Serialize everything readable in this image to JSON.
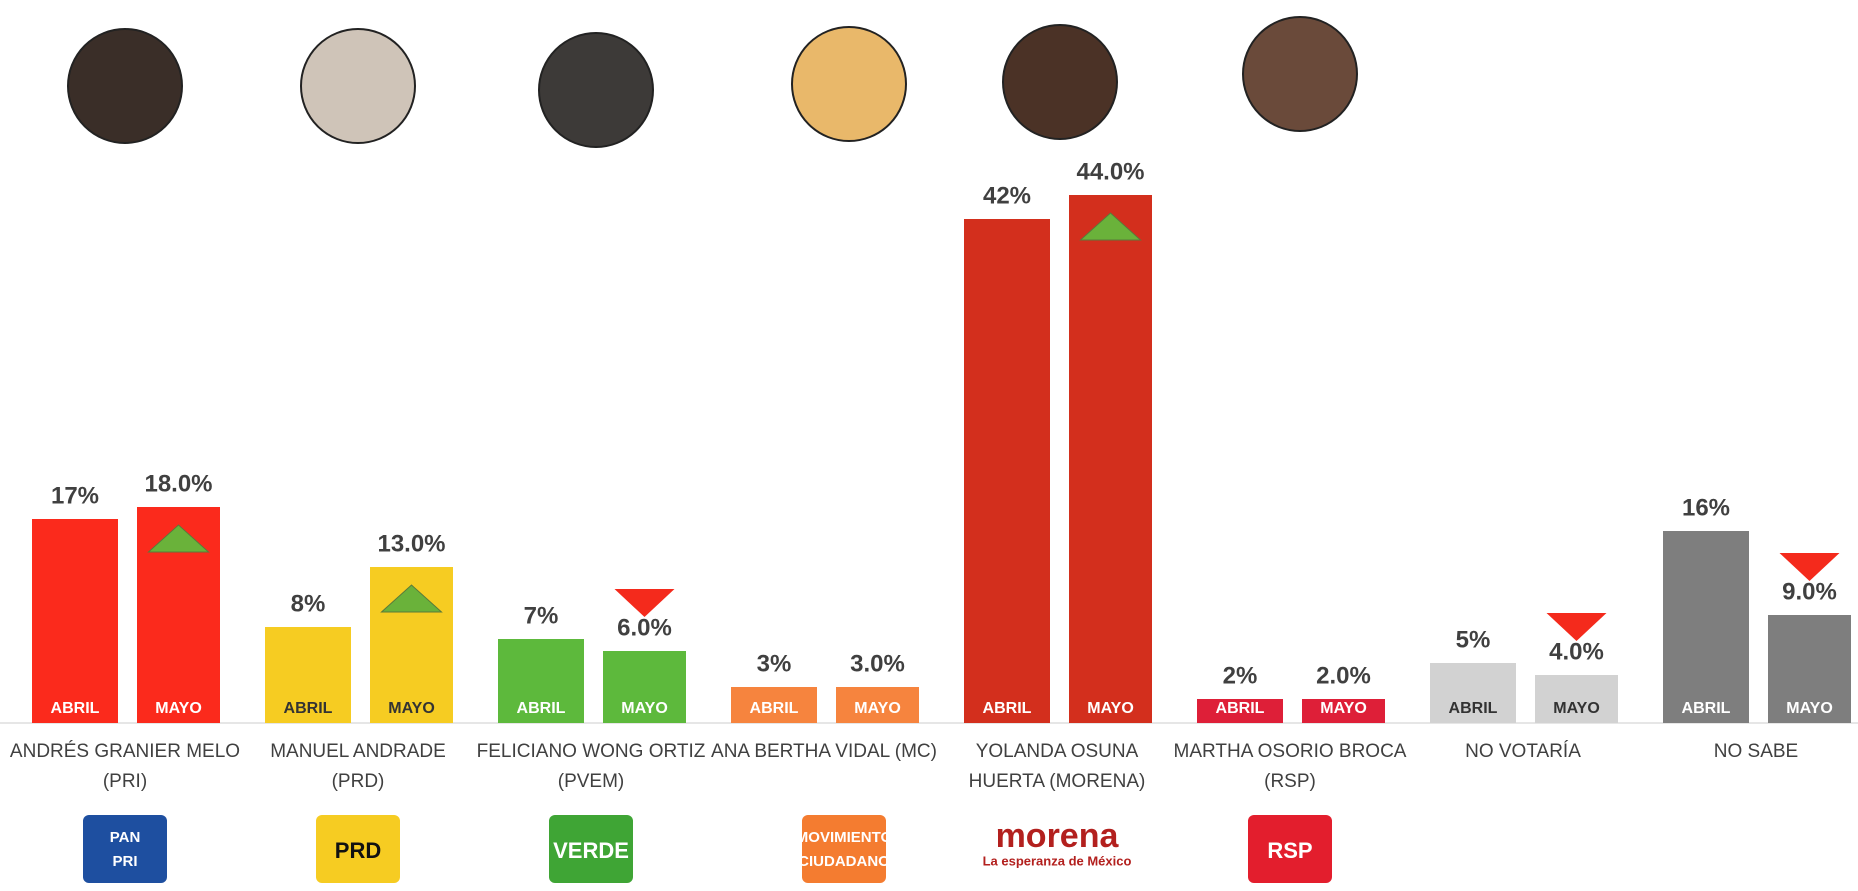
{
  "chart_data": {
    "type": "bar",
    "categories": [
      [
        "ANDRÉS GRANIER MELO",
        "(PRI)"
      ],
      [
        "MANUEL ANDRADE",
        "(PRD)"
      ],
      [
        "FELICIANO WONG ORTIZ",
        "(PVEM)"
      ],
      [
        "ANA BERTHA VIDAL (MC)"
      ],
      [
        "YOLANDA OSUNA",
        "HUERTA (MORENA)"
      ],
      [
        "MARTHA OSORIO BROCA",
        "(RSP)"
      ],
      [
        "NO VOTARÍA"
      ],
      [
        "NO SABE"
      ]
    ],
    "colors": [
      "#fb2a1c",
      "#f6cc22",
      "#5db93c",
      "#f6843e",
      "#d32f1d",
      "#de1f38",
      "#d2d2d2",
      "#7e7e7e"
    ],
    "series": [
      {
        "name": "ABRIL",
        "values": [
          17,
          8,
          7,
          3,
          42,
          2,
          5,
          16
        ],
        "value_labels": [
          "17%",
          "8%",
          "7%",
          "3%",
          "42%",
          "2%",
          "5%",
          "16%"
        ]
      },
      {
        "name": "MAYO",
        "values": [
          18,
          13,
          6,
          3,
          44,
          2,
          4,
          9
        ],
        "value_labels": [
          "18.0%",
          "13.0%",
          "6.0%",
          "3.0%",
          "44.0%",
          "2.0%",
          "4.0%",
          "9.0%"
        ]
      }
    ]
  },
  "logos": [
    [
      "PAN",
      "PRI"
    ],
    [
      "PRD"
    ],
    [
      "VERDE"
    ],
    [
      "MOVIMIENTO",
      "CIUDADANO"
    ],
    [
      "morena",
      "La esperanza de México"
    ],
    [
      "RSP"
    ]
  ]
}
